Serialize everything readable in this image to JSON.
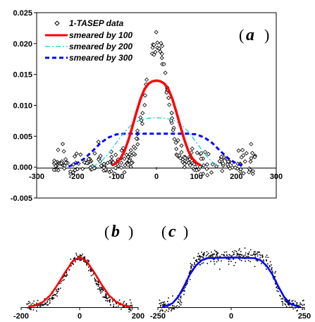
{
  "chart_data": [
    {
      "panel": "(a)",
      "type": "line",
      "xlim": [
        -300,
        300
      ],
      "ylim": [
        -0.005,
        0.025
      ],
      "x_ticks": [
        "-300",
        "-200",
        "-100",
        "0",
        "100",
        "200",
        "300"
      ],
      "y_ticks": [
        "-0.005",
        "0.000",
        "0.005",
        "0.010",
        "0.015",
        "0.020",
        "0.025"
      ],
      "grid": false,
      "legend_position": "top-left",
      "series": [
        {
          "name": "1-TASEP data",
          "style": "scatter-diamond",
          "color": "#000000",
          "model": {
            "shape": "gaussian",
            "amplitude": 0.0198,
            "center": 0,
            "sigma": 26,
            "baseline": 0.0006,
            "range": [
              -260,
              250
            ],
            "points": 260,
            "noise": 0.0012
          }
        },
        {
          "name": "smeared by 100",
          "style": "solid",
          "color": "#ff0000",
          "points": [
            [
              -110,
              0.0003
            ],
            [
              -100,
              0.0007
            ],
            [
              -90,
              0.0014
            ],
            [
              -80,
              0.0026
            ],
            [
              -70,
              0.0044
            ],
            [
              -60,
              0.0066
            ],
            [
              -50,
              0.0089
            ],
            [
              -40,
              0.011
            ],
            [
              -30,
              0.0126
            ],
            [
              -20,
              0.0135
            ],
            [
              -10,
              0.0139
            ],
            [
              0,
              0.014
            ],
            [
              10,
              0.0139
            ],
            [
              20,
              0.0135
            ],
            [
              30,
              0.0126
            ],
            [
              40,
              0.011
            ],
            [
              50,
              0.0089
            ],
            [
              60,
              0.0066
            ],
            [
              70,
              0.0044
            ],
            [
              80,
              0.0026
            ],
            [
              90,
              0.0014
            ],
            [
              100,
              0.0007
            ],
            [
              110,
              0.0003
            ]
          ]
        },
        {
          "name": "smeared by 200",
          "style": "dash-dot",
          "color": "#00cccc",
          "points": [
            [
              -160,
              0.0001
            ],
            [
              -140,
              0.0008
            ],
            [
              -120,
              0.0022
            ],
            [
              -100,
              0.004
            ],
            [
              -80,
              0.0057
            ],
            [
              -60,
              0.007
            ],
            [
              -40,
              0.0077
            ],
            [
              -20,
              0.0079
            ],
            [
              0,
              0.008
            ],
            [
              20,
              0.0079
            ],
            [
              40,
              0.0077
            ],
            [
              60,
              0.007
            ],
            [
              80,
              0.0057
            ],
            [
              100,
              0.004
            ],
            [
              120,
              0.0022
            ],
            [
              140,
              0.0008
            ],
            [
              160,
              0.0001
            ]
          ]
        },
        {
          "name": "smeared by 300",
          "style": "dashed",
          "color": "#0000ff",
          "points": [
            [
              -220,
              0.0001
            ],
            [
              -200,
              0.0006
            ],
            [
              -180,
              0.0014
            ],
            [
              -160,
              0.0026
            ],
            [
              -140,
              0.0039
            ],
            [
              -120,
              0.0048
            ],
            [
              -100,
              0.0053
            ],
            [
              -80,
              0.0054
            ],
            [
              0,
              0.0054
            ],
            [
              80,
              0.0054
            ],
            [
              100,
              0.0053
            ],
            [
              120,
              0.0048
            ],
            [
              140,
              0.0039
            ],
            [
              160,
              0.0026
            ],
            [
              180,
              0.0014
            ],
            [
              200,
              0.0006
            ],
            [
              220,
              0.0001
            ]
          ]
        }
      ]
    },
    {
      "panel": "(b)",
      "type": "line",
      "xlim": [
        -200,
        200
      ],
      "ylim": [
        0,
        1
      ],
      "x_ticks": [
        "-200",
        "0",
        "200"
      ],
      "series": [
        {
          "style": "scatter-dots",
          "color": "#000000",
          "model": {
            "shape": "gaussian",
            "amplitude": 0.83,
            "center": 0,
            "sigma": 50,
            "baseline": 0.02,
            "range": [
              -180,
              180
            ],
            "points": 300,
            "noise": 0.05
          }
        },
        {
          "style": "solid",
          "color": "#ff0000",
          "points": [
            [
              -175,
              0.01
            ],
            [
              -150,
              0.03
            ],
            [
              -125,
              0.09
            ],
            [
              -100,
              0.2
            ],
            [
              -75,
              0.38
            ],
            [
              -50,
              0.58
            ],
            [
              -25,
              0.76
            ],
            [
              0,
              0.84
            ],
            [
              25,
              0.76
            ],
            [
              50,
              0.58
            ],
            [
              75,
              0.38
            ],
            [
              100,
              0.2
            ],
            [
              125,
              0.09
            ],
            [
              150,
              0.03
            ],
            [
              175,
              0.01
            ]
          ]
        }
      ]
    },
    {
      "panel": "(c)",
      "type": "line",
      "xlim": [
        -250,
        250
      ],
      "ylim": [
        0,
        1
      ],
      "x_ticks": [
        "-250",
        "0",
        "250"
      ],
      "series": [
        {
          "style": "scatter-dots",
          "color": "#000000",
          "model": {
            "shape": "plateau",
            "amplitude": 0.75,
            "center": 0,
            "half_width": 150,
            "edge": 30,
            "baseline": 0.02,
            "range": [
              -245,
              250
            ],
            "points": 420,
            "noise": 0.06
          }
        },
        {
          "style": "solid",
          "color": "#0000ff",
          "points": [
            [
              -235,
              0.01
            ],
            [
              -220,
              0.02
            ],
            [
              -200,
              0.06
            ],
            [
              -180,
              0.16
            ],
            [
              -160,
              0.32
            ],
            [
              -140,
              0.5
            ],
            [
              -120,
              0.63
            ],
            [
              -100,
              0.71
            ],
            [
              -80,
              0.74
            ],
            [
              0,
              0.75
            ],
            [
              80,
              0.74
            ],
            [
              100,
              0.71
            ],
            [
              120,
              0.63
            ],
            [
              140,
              0.5
            ],
            [
              160,
              0.32
            ],
            [
              180,
              0.16
            ],
            [
              200,
              0.06
            ],
            [
              220,
              0.02
            ],
            [
              235,
              0.01
            ]
          ]
        }
      ]
    }
  ]
}
